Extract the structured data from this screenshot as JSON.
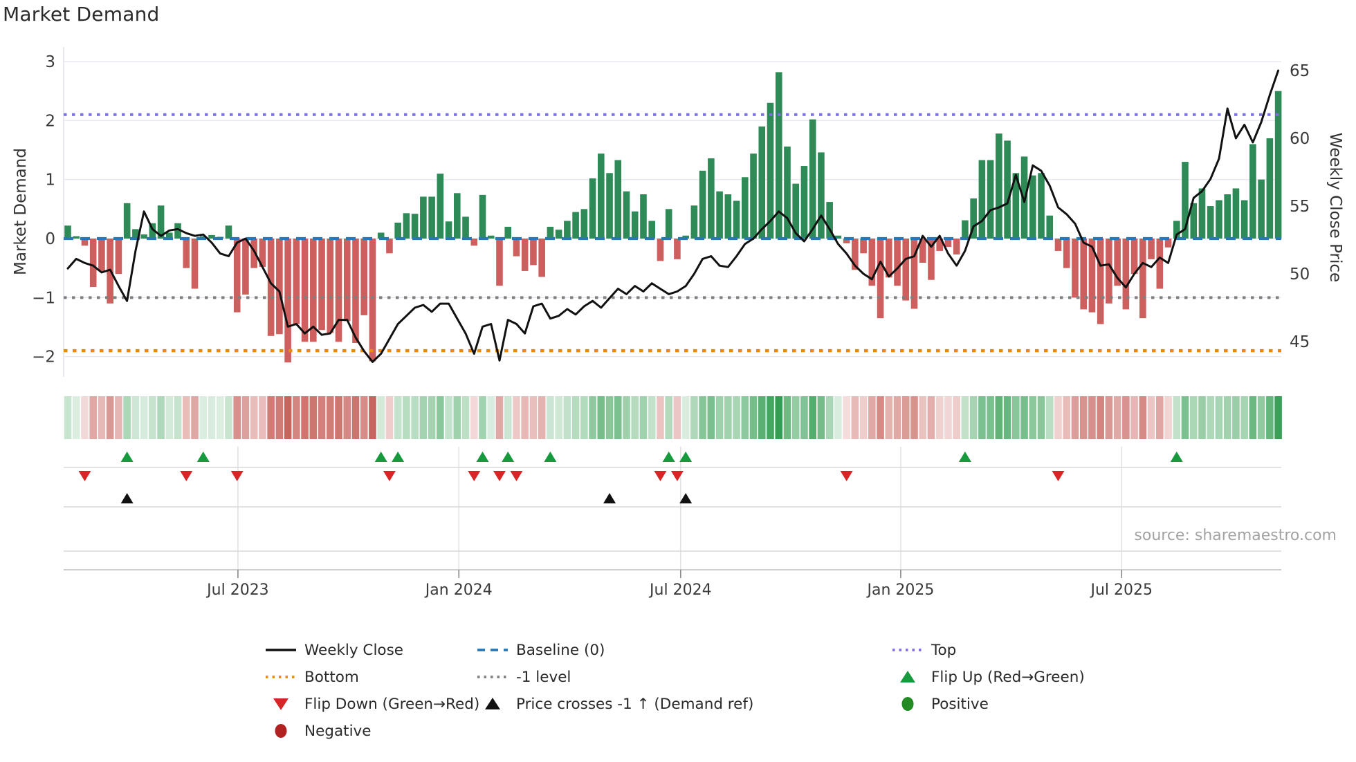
{
  "title": "Market Demand",
  "source": "source: sharemaestro.com",
  "colors": {
    "bar_positive": "#2e8b57",
    "bar_negative": "#cd5f5f",
    "price_line": "#111111",
    "baseline": "#2878b8",
    "top_line": "#7c6fe0",
    "minus1_line": "#7f7f7f",
    "bottom_line": "#e78a12",
    "flip_up": "#179a3d",
    "flip_down": "#d62728",
    "price_cross": "#111111",
    "positive_dot": "#228b22",
    "negative_dot": "#b22222",
    "grid": "#e8e8f2",
    "subgrid": "#d8d8d8",
    "tick_text": "#3a3a3a"
  },
  "chart_data": {
    "type": "bar",
    "subtype": "bar+line composite with heatmap and signal markers",
    "title": "Market Demand",
    "n_weeks": 144,
    "x_ticks": [
      {
        "week": 20.1,
        "label": "Jul 2023"
      },
      {
        "week": 46.2,
        "label": "Jan 2024"
      },
      {
        "week": 72.4,
        "label": "Jul 2024"
      },
      {
        "week": 98.4,
        "label": "Jan 2025"
      },
      {
        "week": 124.5,
        "label": "Jul 2025"
      }
    ],
    "left_axis": {
      "label": "Market Demand",
      "ticks": [
        3,
        2,
        1,
        0,
        -1,
        -2
      ],
      "range": [
        -2.34,
        3.25
      ]
    },
    "right_axis": {
      "label": "Weekly Close Price",
      "ticks": [
        65,
        60,
        55,
        50,
        45
      ],
      "range": [
        42.5,
        66.8
      ]
    },
    "ref_lines": {
      "top": 2.1,
      "minus1": -1.0,
      "bottom": -1.9,
      "baseline": 0.0
    },
    "series": [
      {
        "name": "Market Demand",
        "type": "bar",
        "axis": "left",
        "values": [
          0.22,
          0.04,
          -0.12,
          -0.82,
          -0.55,
          -1.1,
          -0.6,
          0.6,
          0.16,
          0.07,
          0.26,
          0.56,
          0.1,
          0.26,
          -0.5,
          -0.85,
          0.04,
          0.06,
          0.03,
          0.22,
          -1.25,
          -0.95,
          -0.5,
          -0.48,
          -1.65,
          -1.62,
          -2.1,
          -1.45,
          -1.75,
          -1.75,
          -1.55,
          -1.6,
          -1.75,
          -1.4,
          -1.77,
          -1.3,
          -2.08,
          0.1,
          -0.25,
          0.27,
          0.43,
          0.42,
          0.71,
          0.71,
          1.1,
          0.29,
          0.77,
          0.37,
          -0.12,
          0.74,
          0.05,
          -0.8,
          0.2,
          -0.3,
          -0.55,
          -0.45,
          -0.65,
          0.2,
          0.15,
          0.3,
          0.45,
          0.5,
          1.02,
          1.44,
          1.11,
          1.33,
          0.8,
          0.46,
          0.75,
          0.3,
          -0.38,
          0.5,
          -0.35,
          0.05,
          0.56,
          1.15,
          1.36,
          0.8,
          0.75,
          0.64,
          1.04,
          1.44,
          1.9,
          2.3,
          2.82,
          1.56,
          0.93,
          1.23,
          2.02,
          1.46,
          0.62,
          0.05,
          -0.08,
          -0.53,
          -0.25,
          -0.8,
          -1.35,
          -0.66,
          -0.8,
          -1.05,
          -1.19,
          -0.41,
          -0.7,
          -0.21,
          -0.14,
          -0.27,
          0.31,
          0.68,
          1.33,
          1.33,
          1.78,
          1.66,
          1.11,
          1.39,
          1.07,
          1.11,
          0.39,
          -0.21,
          -0.5,
          -1.0,
          -1.2,
          -1.25,
          -1.45,
          -1.1,
          -0.8,
          -1.2,
          -0.6,
          -1.35,
          -0.35,
          -0.85,
          -0.15,
          0.3,
          1.3,
          0.6,
          0.85,
          0.55,
          0.65,
          0.75,
          0.85,
          0.65,
          1.6,
          1.0,
          1.7,
          2.5
        ]
      },
      {
        "name": "Weekly Close",
        "type": "line",
        "axis": "right",
        "values": [
          50.4,
          51.1,
          50.8,
          50.6,
          50.1,
          50.3,
          49.1,
          48.0,
          51.7,
          54.6,
          53.3,
          52.8,
          53.2,
          53.3,
          53.0,
          52.8,
          52.9,
          52.3,
          51.5,
          51.3,
          52.3,
          52.6,
          51.7,
          50.5,
          49.3,
          48.7,
          46.1,
          46.3,
          45.6,
          46.1,
          45.5,
          45.6,
          46.6,
          46.6,
          45.3,
          44.3,
          43.5,
          44.1,
          45.2,
          46.3,
          46.9,
          47.5,
          47.7,
          47.2,
          47.8,
          47.8,
          46.7,
          45.6,
          44.1,
          46.1,
          46.3,
          43.6,
          46.6,
          46.3,
          45.6,
          47.6,
          47.8,
          46.7,
          46.9,
          47.4,
          47.0,
          47.6,
          48.0,
          47.5,
          48.2,
          48.9,
          48.5,
          49.1,
          48.7,
          49.3,
          48.9,
          48.5,
          48.7,
          49.1,
          50.0,
          51.1,
          51.3,
          50.6,
          50.5,
          51.3,
          52.2,
          52.6,
          53.3,
          53.9,
          54.6,
          54.1,
          53.0,
          52.4,
          53.3,
          54.3,
          53.3,
          52.2,
          51.5,
          50.6,
          50.0,
          49.6,
          50.9,
          49.8,
          50.4,
          51.1,
          51.3,
          52.8,
          52.0,
          52.8,
          51.5,
          50.6,
          51.7,
          53.5,
          53.9,
          54.7,
          54.9,
          55.2,
          57.3,
          55.3,
          58.0,
          57.6,
          56.5,
          54.9,
          54.4,
          53.7,
          52.3,
          52.0,
          50.6,
          50.7,
          49.7,
          49.0,
          50.0,
          50.8,
          50.5,
          51.2,
          50.8,
          52.9,
          53.3,
          55.6,
          56.1,
          57.0,
          58.5,
          62.2,
          60.0,
          61.0,
          59.7,
          61.2,
          63.2,
          65.0
        ]
      }
    ],
    "markers": {
      "flip_up_weeks": [
        7,
        16,
        37,
        39,
        49,
        52,
        57,
        71,
        73,
        106,
        131
      ],
      "flip_down_weeks": [
        2,
        14,
        20,
        38,
        48,
        51,
        53,
        70,
        72,
        92,
        117
      ],
      "price_cross_weeks": [
        7,
        64,
        73
      ]
    },
    "heatmap": {
      "note": "weekly strip shaded by Market Demand value",
      "derived_from": "Market Demand bar values"
    },
    "legend_position": "bottom",
    "grid": "horizontal only in main panel"
  },
  "legend": {
    "items": [
      {
        "label": "Weekly Close",
        "swatch": "solid-black",
        "col": 0,
        "row": 0
      },
      {
        "label": "Baseline (0)",
        "swatch": "dash-blue",
        "col": 1,
        "row": 0
      },
      {
        "label": "Top",
        "swatch": "dot-purple",
        "col": 2,
        "row": 0
      },
      {
        "label": "Bottom",
        "swatch": "dot-orange",
        "col": 0,
        "row": 1
      },
      {
        "label": "-1 level",
        "swatch": "dot-gray",
        "col": 1,
        "row": 1
      },
      {
        "label": "Flip Up (Red→Green)",
        "swatch": "tri-up-green",
        "col": 2,
        "row": 1
      },
      {
        "label": "Flip Down (Green→Red)",
        "swatch": "tri-down-red",
        "col": 0,
        "row": 2
      },
      {
        "label": "Price crosses -1 ↑ (Demand ref)",
        "swatch": "tri-up-black",
        "col": 1,
        "row": 2
      },
      {
        "label": "Positive",
        "swatch": "circle-green",
        "col": 2,
        "row": 2
      },
      {
        "label": "Negative",
        "swatch": "circle-darkred",
        "col": 0,
        "row": 3
      }
    ]
  }
}
